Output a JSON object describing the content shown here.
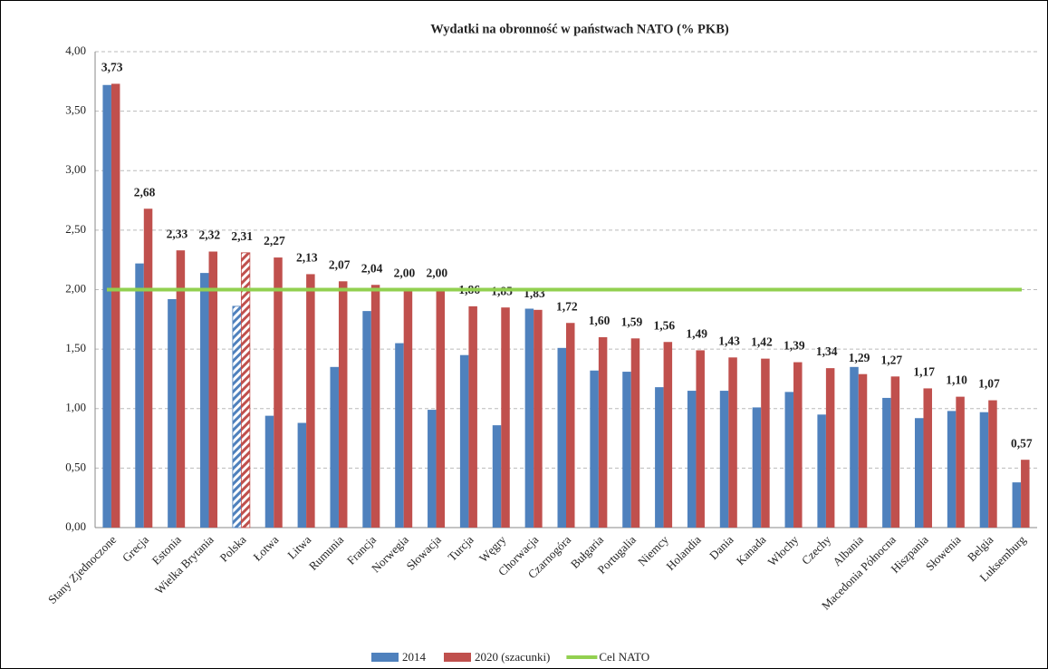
{
  "chart_data": {
    "type": "bar",
    "title": "Wydatki na obronność w państwach NATO (% PKB)",
    "categories": [
      "Stany Zjednoczone",
      "Grecja",
      "Estonia",
      "Wielka Brytania",
      "Polska",
      "Łotwa",
      "Litwa",
      "Rumunia",
      "Francja",
      "Norwegia",
      "Słowacja",
      "Turcja",
      "Węgry",
      "Chorwacja",
      "Czarnogóra",
      "Bułgaria",
      "Portugalia",
      "Niemcy",
      "Holandia",
      "Dania",
      "Kanada",
      "Włochy",
      "Czechy",
      "Albania",
      "Macedonia Północna",
      "Hiszpania",
      "Słowenia",
      "Belgia",
      "Luksemburg"
    ],
    "series": [
      {
        "name": "2014",
        "color": "#4f81bd",
        "values": [
          3.72,
          2.22,
          1.92,
          2.14,
          1.86,
          0.94,
          0.88,
          1.35,
          1.82,
          1.55,
          0.99,
          1.45,
          0.86,
          1.84,
          1.51,
          1.32,
          1.31,
          1.18,
          1.15,
          1.15,
          1.01,
          1.14,
          0.95,
          1.35,
          1.09,
          0.92,
          0.98,
          0.97,
          0.38
        ]
      },
      {
        "name": "2020 (szacunki)",
        "color": "#c0504d",
        "values": [
          3.73,
          2.68,
          2.33,
          2.32,
          2.31,
          2.27,
          2.13,
          2.07,
          2.04,
          2.0,
          2.0,
          1.86,
          1.85,
          1.83,
          1.72,
          1.6,
          1.59,
          1.56,
          1.49,
          1.43,
          1.42,
          1.39,
          1.34,
          1.29,
          1.27,
          1.17,
          1.1,
          1.07,
          0.57
        ],
        "value_labels": [
          "3,73",
          "2,68",
          "2,33",
          "2,32",
          "2,31",
          "2,27",
          "2,13",
          "2,07",
          "2,04",
          "2,00",
          "2,00",
          "1,86",
          "1,85",
          "1,83",
          "1,72",
          "1,60",
          "1,59",
          "1,56",
          "1,49",
          "1,43",
          "1,42",
          "1,39",
          "1,34",
          "1,29",
          "1,27",
          "1,17",
          "1,10",
          "1,07",
          "0,57"
        ]
      },
      {
        "name": "Cel NATO",
        "color": "#92d050",
        "kind": "line",
        "values": [
          2,
          2,
          2,
          2,
          2,
          2,
          2,
          2,
          2,
          2,
          2,
          2,
          2,
          2,
          2,
          2,
          2,
          2,
          2,
          2,
          2,
          2,
          2,
          2,
          2,
          2,
          2,
          2,
          2
        ]
      }
    ],
    "hatched": [
      4
    ],
    "ylim": [
      0,
      4
    ],
    "yticks": [
      {
        "value": 0,
        "label": "0,00"
      },
      {
        "value": 0.5,
        "label": "0,50"
      },
      {
        "value": 1,
        "label": "1,00"
      },
      {
        "value": 1.5,
        "label": "1,50"
      },
      {
        "value": 2,
        "label": "2,00"
      },
      {
        "value": 2.5,
        "label": "2,50"
      },
      {
        "value": 3,
        "label": "3,00"
      },
      {
        "value": 3.5,
        "label": "3,50"
      },
      {
        "value": 4,
        "label": "4,00"
      }
    ],
    "grid": true
  }
}
